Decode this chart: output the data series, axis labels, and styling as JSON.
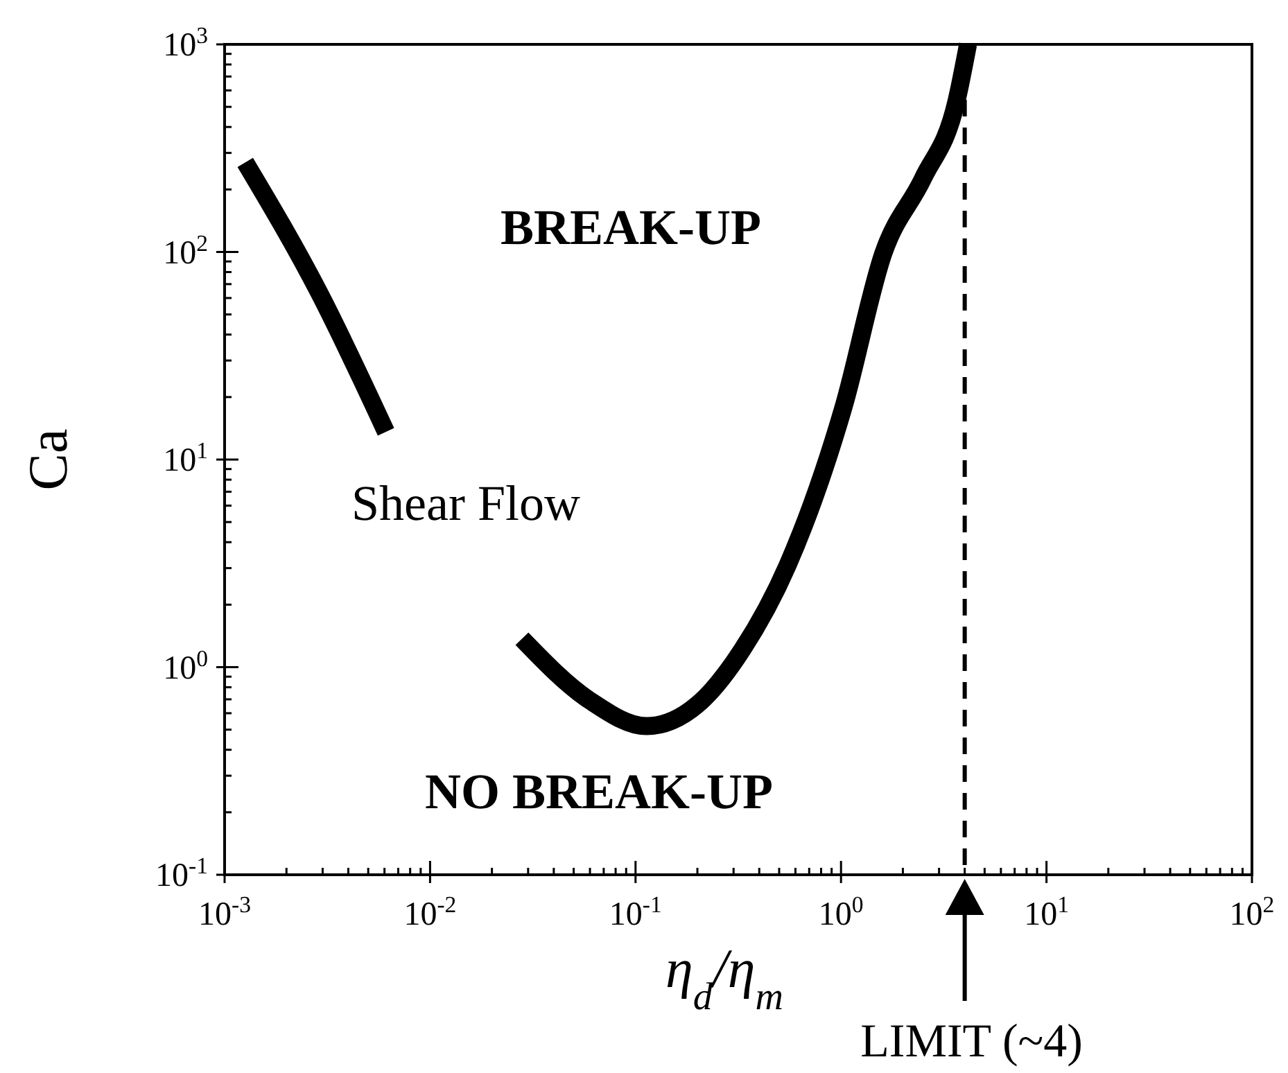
{
  "chart_data": {
    "type": "line",
    "xlabel": "η$_{d}$/η$_{m}$",
    "ylabel": "Ca",
    "log": "xy",
    "grid": false,
    "marker": "none",
    "line_style": "solid",
    "xlim": [
      0.001,
      100
    ],
    "ylim": [
      0.1,
      1000
    ],
    "xticks": [
      {
        "value": 0.001,
        "label": "10$^{-3}$"
      },
      {
        "value": 0.002,
        "label": null
      },
      {
        "value": 0.003,
        "label": null
      },
      {
        "value": 0.004,
        "label": null
      },
      {
        "value": 0.005,
        "label": null
      },
      {
        "value": 0.006,
        "label": null
      },
      {
        "value": 0.007,
        "label": null
      },
      {
        "value": 0.008,
        "label": null
      },
      {
        "value": 0.009,
        "label": null
      },
      {
        "value": 0.01,
        "label": "10$^{-2}$"
      },
      {
        "value": 0.02,
        "label": null
      },
      {
        "value": 0.03,
        "label": null
      },
      {
        "value": 0.04,
        "label": null
      },
      {
        "value": 0.05,
        "label": null
      },
      {
        "value": 0.06,
        "label": null
      },
      {
        "value": 0.07,
        "label": null
      },
      {
        "value": 0.08,
        "label": null
      },
      {
        "value": 0.09,
        "label": null
      },
      {
        "value": 0.1,
        "label": "10$^{-1}$"
      },
      {
        "value": 0.2,
        "label": null
      },
      {
        "value": 0.3,
        "label": null
      },
      {
        "value": 0.4,
        "label": null
      },
      {
        "value": 0.5,
        "label": null
      },
      {
        "value": 0.6,
        "label": null
      },
      {
        "value": 0.7,
        "label": null
      },
      {
        "value": 0.8,
        "label": null
      },
      {
        "value": 0.9,
        "label": null
      },
      {
        "value": 1,
        "label": "10$^{0}$"
      },
      {
        "value": 2,
        "label": null
      },
      {
        "value": 3,
        "label": null
      },
      {
        "value": 4,
        "label": null
      },
      {
        "value": 5,
        "label": null
      },
      {
        "value": 6,
        "label": null
      },
      {
        "value": 7,
        "label": null
      },
      {
        "value": 8,
        "label": null
      },
      {
        "value": 9,
        "label": null
      },
      {
        "value": 10,
        "label": "10$^{1}$"
      },
      {
        "value": 20,
        "label": null
      },
      {
        "value": 30,
        "label": null
      },
      {
        "value": 40,
        "label": null
      },
      {
        "value": 50,
        "label": null
      },
      {
        "value": 60,
        "label": null
      },
      {
        "value": 70,
        "label": null
      },
      {
        "value": 80,
        "label": null
      },
      {
        "value": 90,
        "label": null
      },
      {
        "value": 100,
        "label": "10$^{2}$"
      }
    ],
    "yticks": [
      {
        "value": 0.1,
        "label": "10$^{-1}$"
      },
      {
        "value": 0.2,
        "label": null
      },
      {
        "value": 0.3,
        "label": null
      },
      {
        "value": 0.4,
        "label": null
      },
      {
        "value": 0.5,
        "label": null
      },
      {
        "value": 0.6,
        "label": null
      },
      {
        "value": 0.7,
        "label": null
      },
      {
        "value": 0.8,
        "label": null
      },
      {
        "value": 0.9,
        "label": null
      },
      {
        "value": 1,
        "label": "10$^{0}$"
      },
      {
        "value": 2,
        "label": null
      },
      {
        "value": 3,
        "label": null
      },
      {
        "value": 4,
        "label": null
      },
      {
        "value": 5,
        "label": null
      },
      {
        "value": 6,
        "label": null
      },
      {
        "value": 7,
        "label": null
      },
      {
        "value": 8,
        "label": null
      },
      {
        "value": 9,
        "label": null
      },
      {
        "value": 10,
        "label": "10$^{1}$"
      },
      {
        "value": 20,
        "label": null
      },
      {
        "value": 30,
        "label": null
      },
      {
        "value": 40,
        "label": null
      },
      {
        "value": 50,
        "label": null
      },
      {
        "value": 60,
        "label": null
      },
      {
        "value": 70,
        "label": null
      },
      {
        "value": 80,
        "label": null
      },
      {
        "value": 90,
        "label": null
      },
      {
        "value": 100,
        "label": "10$^{2}$"
      },
      {
        "value": 200,
        "label": null
      },
      {
        "value": 300,
        "label": null
      },
      {
        "value": 400,
        "label": null
      },
      {
        "value": 500,
        "label": null
      },
      {
        "value": 600,
        "label": null
      },
      {
        "value": 700,
        "label": null
      },
      {
        "value": 800,
        "label": null
      },
      {
        "value": 900,
        "label": null
      },
      {
        "value": 1000,
        "label": "10$^{3}$"
      }
    ],
    "series": [
      {
        "color": "#000000",
        "x": [
          0.00126,
          0.0029,
          0.0061,
          0.0149,
          0.028,
          0.06,
          0.113,
          0.2,
          0.33,
          0.55,
          1.03,
          1.61,
          2.5,
          3.66,
          4.15
        ],
        "values": [
          270,
          63,
          13.6,
          null,
          1.37,
          0.69,
          0.52,
          0.66,
          1.21,
          3.1,
          18,
          99,
          225,
          540,
          1000
        ]
      }
    ],
    "ref_lines": [
      {
        "axis": "x",
        "value": 4,
        "label": "LIMIT (~4)",
        "color": "#000000",
        "line_style": "dashed"
      }
    ],
    "annotations": [
      "BREAK-UP",
      "Shear Flow",
      "NO BREAK-UP"
    ]
  }
}
